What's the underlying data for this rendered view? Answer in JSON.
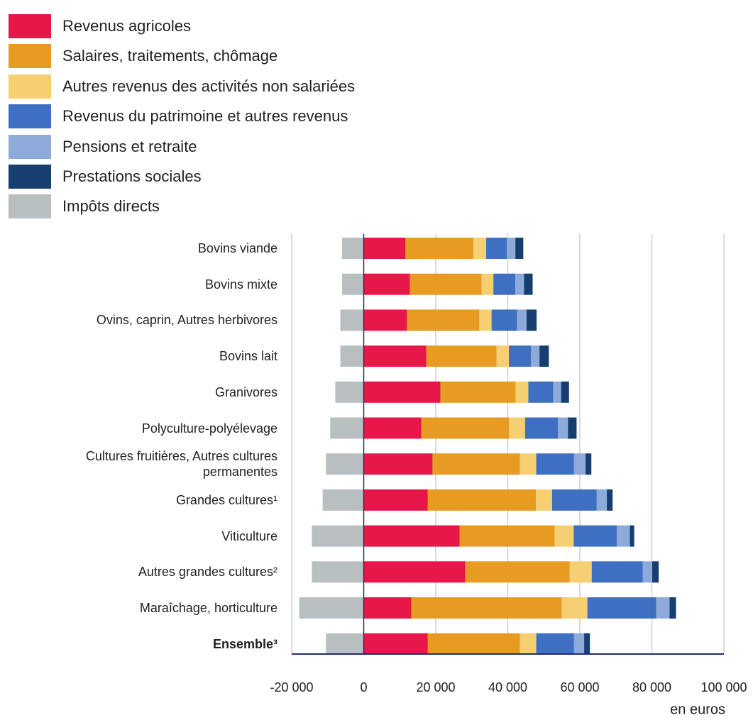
{
  "chart_data": {
    "type": "stacked_barh",
    "categories": [
      "Bovins viande",
      "Bovins mixte",
      "Ovins, caprin, Autres herbivores",
      "Bovins lait",
      "Granivores",
      "Polyculture-polyélevage",
      "Cultures fruitières, Autres cultures permanentes",
      "Grandes cultures¹",
      "Viticulture",
      "Autres grandes cultures²",
      "Maraîchage, horticulture",
      "Ensemble³"
    ],
    "series": [
      {
        "name": "Revenus agricoles",
        "color": "#e8174a",
        "values": [
          11600,
          12800,
          12000,
          17400,
          21300,
          16000,
          19100,
          17800,
          26600,
          28200,
          13200,
          17800
        ]
      },
      {
        "name": "Salaires, traitements, chômage",
        "color": "#e89b22",
        "values": [
          18900,
          19900,
          20100,
          19500,
          20900,
          24300,
          24300,
          30000,
          26400,
          29000,
          41800,
          25600
        ]
      },
      {
        "name": "Autres revenus des activités non salariées",
        "color": "#f5cf72",
        "values": [
          3500,
          3300,
          3400,
          3400,
          3500,
          4500,
          4500,
          4500,
          5300,
          6100,
          7100,
          4500
        ]
      },
      {
        "name": "Revenus du patrimoine et autres revenus",
        "color": "#3f6fc0",
        "values": [
          5700,
          6100,
          7100,
          6100,
          6900,
          9100,
          10500,
          12400,
          12000,
          14200,
          19100,
          10500
        ]
      },
      {
        "name": "Pensions et retraite",
        "color": "#8eaadb",
        "values": [
          2400,
          2400,
          2600,
          2400,
          2200,
          2800,
          3200,
          2800,
          3600,
          2600,
          3700,
          2800
        ]
      },
      {
        "name": "Prestations sociales",
        "color": "#163f70",
        "values": [
          2200,
          2400,
          2800,
          2600,
          2200,
          2400,
          1600,
          1600,
          1200,
          1800,
          1800,
          1600
        ]
      },
      {
        "name": "Impôts directs",
        "color": "#b9bfc1",
        "values": [
          -6000,
          -6000,
          -6500,
          -6500,
          -7900,
          -9300,
          -10500,
          -11400,
          -14400,
          -14400,
          -17900,
          -10500
        ]
      }
    ],
    "xlim": [
      -20000,
      100000
    ],
    "xticks": [
      {
        "value": -20000,
        "label": "-20 000"
      },
      0,
      {
        "value": 20000,
        "label": "20 000"
      },
      {
        "value": 40000,
        "label": "40 000"
      },
      {
        "value": 60000,
        "label": "60 000"
      },
      {
        "value": 80000,
        "label": "80 000"
      },
      {
        "value": 100000,
        "label": "100 000"
      }
    ],
    "xlabel": "en euros",
    "grid": true
  }
}
